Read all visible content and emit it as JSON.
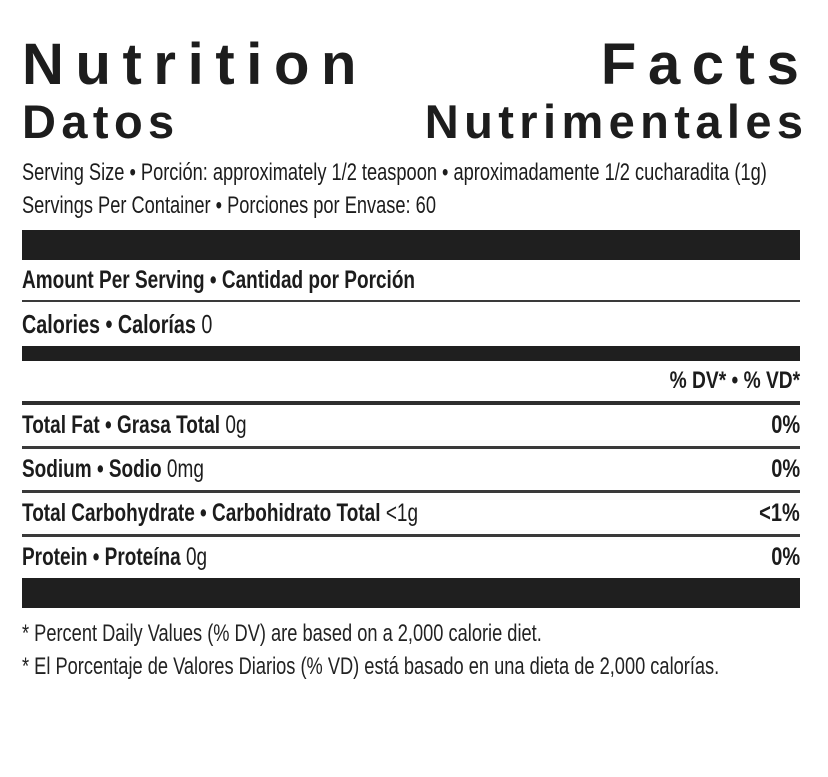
{
  "label": {
    "title_en": {
      "word1": "Nutrition",
      "word2": "Facts"
    },
    "title_es": {
      "word1": "Datos",
      "word2": "Nutrimentales"
    },
    "serving": {
      "serving_size": "Serving Size • Porción: approximately 1/2 teaspoon • aproximadamente 1/2 cucharadita (1g)",
      "servings_per_container": "Servings Per Container • Porciones por Envase: 60"
    },
    "amount_per_serving": "Amount Per Serving • Cantidad por Porción",
    "calories": {
      "label": "Calories • Calorías",
      "value": "0"
    },
    "dv_header": "% DV* • % VD*",
    "rows": [
      {
        "name": "Total Fat • Grasa Total",
        "amount": "0g",
        "dv": "0%"
      },
      {
        "name": "Sodium • Sodio",
        "amount": "0mg",
        "dv": "0%"
      },
      {
        "name": "Total Carbohydrate • Carbohidrato Total",
        "amount": "<1g",
        "dv": "<1%"
      },
      {
        "name": "Protein • Proteína",
        "amount": "0g",
        "dv": "0%"
      }
    ],
    "footnotes": [
      "* Percent Daily Values (% DV) are based on a 2,000 calorie diet.",
      "* El Porcentaje de Valores Diarios (% VD) está basado en una dieta de 2,000 calorías."
    ],
    "colors": {
      "text": "#1c1c1c",
      "bar": "#1f1f1f",
      "rule": "#3a3a3a",
      "background": "#ffffff"
    }
  }
}
